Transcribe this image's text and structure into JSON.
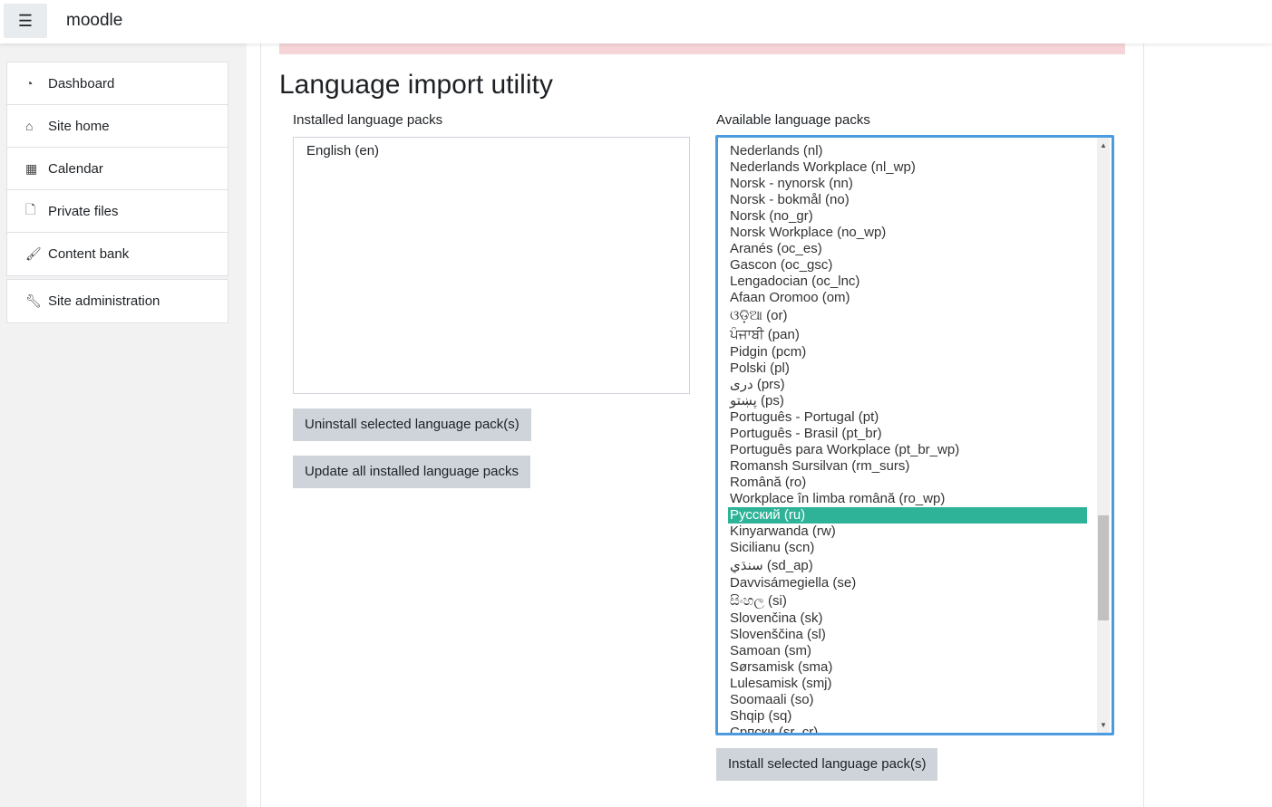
{
  "header": {
    "brand": "moodle",
    "menu_icon": "hamburger-icon"
  },
  "sidebar": {
    "items": [
      {
        "label": "Dashboard",
        "icon": "dashboard-icon"
      },
      {
        "label": "Site home",
        "icon": "home-icon"
      },
      {
        "label": "Calendar",
        "icon": "calendar-icon"
      },
      {
        "label": "Private files",
        "icon": "file-icon"
      },
      {
        "label": "Content bank",
        "icon": "brush-icon"
      }
    ],
    "admin": {
      "label": "Site administration",
      "icon": "wrench-icon"
    }
  },
  "main": {
    "title": "Language import utility",
    "installed_label": "Installed language packs",
    "installed": [
      "English (en)"
    ],
    "uninstall_button": "Uninstall selected language pack(s)",
    "update_button": "Update all installed language packs",
    "available_label": "Available language packs",
    "install_button": "Install selected language pack(s)",
    "selected": "Русский (ru)",
    "selection_color": "#2eb398",
    "available": [
      "Nederlands (nl)",
      "Nederlands Workplace (nl_wp)",
      "Norsk - nynorsk (nn)",
      "Norsk - bokmål (no)",
      "Norsk (no_gr)",
      "Norsk Workplace (no_wp)",
      "Aranés (oc_es)",
      "Gascon (oc_gsc)",
      "Lengadocian (oc_lnc)",
      "Afaan Oromoo (om)",
      "ଓଡ଼ିଆ (or)",
      "ਪੰਜਾਬੀ (pan)",
      "Pidgin (pcm)",
      "Polski (pl)",
      "درى (prs)",
      "پښتو (ps)",
      "Português - Portugal (pt)",
      "Português - Brasil (pt_br)",
      "Português para Workplace (pt_br_wp)",
      "Romansh Sursilvan (rm_surs)",
      "Română (ro)",
      "Workplace în limba română (ro_wp)",
      "Русский (ru)",
      "Kinyarwanda (rw)",
      "Sicilianu (scn)",
      "سنڌي (sd_ap)",
      "Davvisámegiella (se)",
      "සිංහල (si)",
      "Slovenčina (sk)",
      "Slovenščina (sl)",
      "Samoan (sm)",
      "Sørsamisk (sma)",
      "Lulesamisk (smj)",
      "Soomaali (so)",
      "Shqip (sq)",
      "Српски (sr_cr)"
    ]
  }
}
